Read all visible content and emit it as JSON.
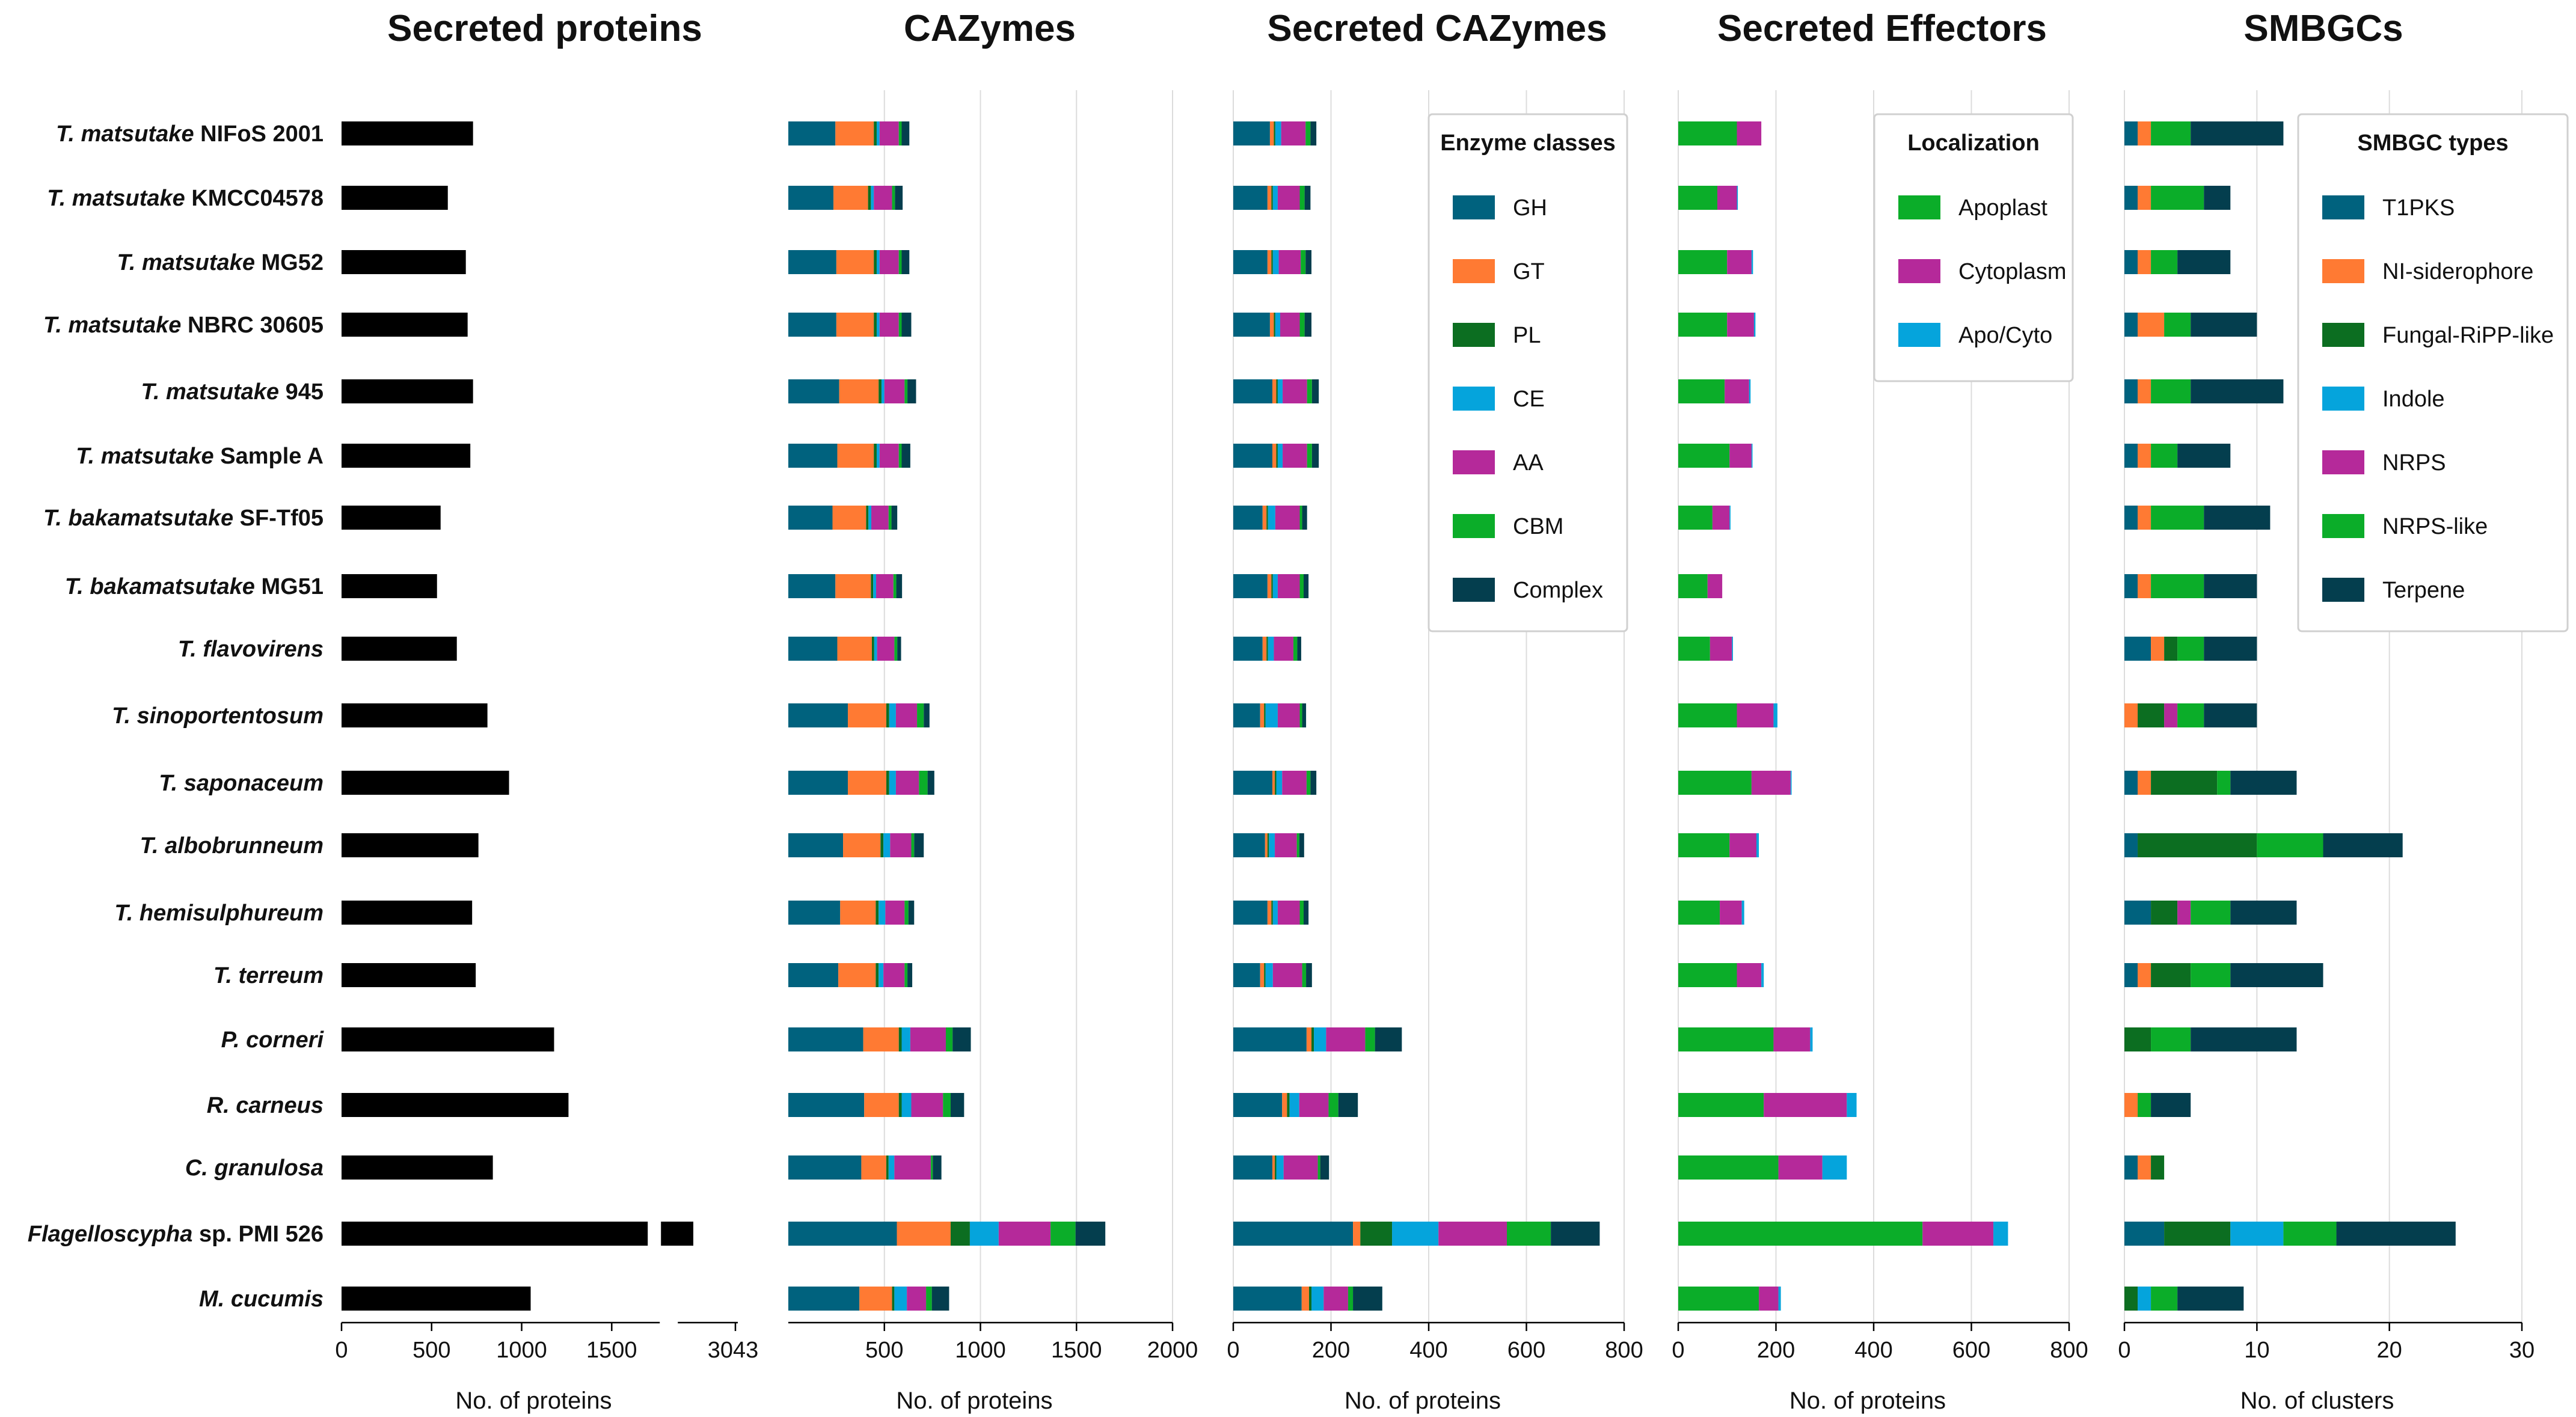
{
  "chart_data": {
    "type": "bar",
    "orientation": "horizontal",
    "stacked": true,
    "categories": [
      {
        "italic": "T. matsutake",
        "rest": " NIFoS 2001"
      },
      {
        "italic": "T. matsutake",
        "rest": " KMCC04578"
      },
      {
        "italic": "T. matsutake",
        "rest": " MG52"
      },
      {
        "italic": "T. matsutake",
        "rest": " NBRC 30605"
      },
      {
        "italic": "T. matsutake",
        "rest": " 945"
      },
      {
        "italic": "T. matsutake",
        "rest": " Sample A"
      },
      {
        "italic": "T. bakamatsutake",
        "rest": " SF-Tf05"
      },
      {
        "italic": "T. bakamatsutake",
        "rest": " MG51"
      },
      {
        "italic": "T. flavovirens",
        "rest": ""
      },
      {
        "italic": "T. sinoportentosum",
        "rest": ""
      },
      {
        "italic": "T. saponaceum",
        "rest": ""
      },
      {
        "italic": "T. albobrunneum",
        "rest": ""
      },
      {
        "italic": "T. hemisulphureum",
        "rest": ""
      },
      {
        "italic": "T. terreum",
        "rest": ""
      },
      {
        "italic": "P. corneri",
        "rest": ""
      },
      {
        "italic": "R. carneus",
        "rest": ""
      },
      {
        "italic": "C. granulosa",
        "rest": ""
      },
      {
        "italic": "Flagelloscypha",
        "rest": " sp. PMI 526"
      },
      {
        "italic": "M. cucumis",
        "rest": ""
      }
    ],
    "panels": [
      {
        "title": "Secreted proteins",
        "xlabel": "No. of proteins",
        "xlim": [
          0,
          2200
        ],
        "ticks": [
          0,
          500,
          1000,
          1500
        ],
        "tick_labels": [
          "0",
          "500",
          "1000",
          "1500"
        ],
        "break_tick_label": "3043",
        "axis_break": {
          "at": 1700,
          "resume": 2800,
          "max": 3043
        },
        "grid": false,
        "series": [
          {
            "name": "Secreted proteins",
            "color": "#000000",
            "values": [
              730,
              590,
              690,
              700,
              730,
              715,
              550,
              530,
              640,
              810,
              930,
              760,
              725,
              745,
              1180,
              1260,
              840,
              3043,
              1050
            ]
          }
        ]
      },
      {
        "title": "CAZymes",
        "xlabel": "No. of proteins",
        "xlim": [
          0,
          2000
        ],
        "ticks": [
          500,
          1000,
          1500,
          2000
        ],
        "tick_labels": [
          "500",
          "1000",
          "1500",
          "2000"
        ],
        "grid": true,
        "series": [
          {
            "name": "GH",
            "color": "#00627e",
            "values": [
              245,
              235,
              250,
              250,
              265,
              255,
              230,
              245,
              255,
              310,
              310,
              285,
              270,
              260,
              390,
              395,
              380,
              565,
              370
            ]
          },
          {
            "name": "GT",
            "color": "#ff7a33",
            "values": [
              200,
              180,
              195,
              195,
              205,
              190,
              175,
              185,
              180,
              200,
              200,
              195,
              185,
              195,
              185,
              180,
              130,
              280,
              170
            ]
          },
          {
            "name": "PL",
            "color": "#0c6e21",
            "values": [
              15,
              15,
              15,
              15,
              15,
              15,
              12,
              12,
              12,
              15,
              15,
              15,
              15,
              15,
              15,
              15,
              12,
              100,
              12
            ]
          },
          {
            "name": "CE",
            "color": "#05a4dc",
            "values": [
              15,
              15,
              15,
              15,
              15,
              15,
              15,
              15,
              15,
              35,
              35,
              35,
              35,
              25,
              45,
              50,
              30,
              150,
              65
            ]
          },
          {
            "name": "AA",
            "color": "#b5299a",
            "values": [
              100,
              95,
              100,
              100,
              105,
              100,
              90,
              90,
              90,
              110,
              120,
              110,
              100,
              110,
              185,
              165,
              190,
              270,
              100
            ]
          },
          {
            "name": "CBM",
            "color": "#0bad29",
            "values": [
              15,
              15,
              15,
              15,
              15,
              15,
              15,
              15,
              15,
              35,
              45,
              15,
              20,
              15,
              35,
              40,
              10,
              130,
              30
            ]
          },
          {
            "name": "Complex",
            "color": "#043e4e",
            "values": [
              40,
              40,
              40,
              50,
              45,
              45,
              30,
              30,
              20,
              30,
              35,
              50,
              30,
              25,
              95,
              70,
              45,
              155,
              90
            ]
          }
        ]
      },
      {
        "title": "Secreted CAZymes",
        "xlabel": "No. of proteins",
        "xlim": [
          0,
          800
        ],
        "ticks": [
          0,
          200,
          400,
          600,
          800
        ],
        "tick_labels": [
          "0",
          "200",
          "400",
          "600",
          "800"
        ],
        "grid": true,
        "series": [
          {
            "name": "GH",
            "color": "#00627e",
            "values": [
              75,
              70,
              70,
              75,
              80,
              80,
              60,
              70,
              60,
              55,
              80,
              65,
              70,
              55,
              150,
              100,
              80,
              245,
              140
            ]
          },
          {
            "name": "GT",
            "color": "#ff7a33",
            "values": [
              8,
              8,
              8,
              8,
              8,
              8,
              8,
              8,
              8,
              8,
              5,
              5,
              8,
              8,
              10,
              10,
              5,
              15,
              15
            ]
          },
          {
            "name": "PL",
            "color": "#0c6e21",
            "values": [
              3,
              3,
              3,
              3,
              3,
              3,
              3,
              3,
              3,
              3,
              3,
              3,
              3,
              3,
              5,
              5,
              3,
              65,
              5
            ]
          },
          {
            "name": "CE",
            "color": "#05a4dc",
            "values": [
              12,
              10,
              12,
              10,
              10,
              10,
              15,
              10,
              12,
              25,
              12,
              12,
              10,
              15,
              25,
              20,
              15,
              95,
              25
            ]
          },
          {
            "name": "AA",
            "color": "#b5299a",
            "values": [
              50,
              45,
              45,
              40,
              50,
              50,
              50,
              45,
              40,
              45,
              50,
              45,
              45,
              60,
              80,
              60,
              70,
              140,
              50
            ]
          },
          {
            "name": "CBM",
            "color": "#0bad29",
            "values": [
              10,
              10,
              10,
              10,
              10,
              10,
              5,
              8,
              8,
              5,
              8,
              5,
              8,
              8,
              20,
              20,
              5,
              90,
              10
            ]
          },
          {
            "name": "Complex",
            "color": "#043e4e",
            "values": [
              12,
              12,
              12,
              14,
              14,
              14,
              10,
              10,
              8,
              8,
              12,
              10,
              10,
              12,
              55,
              40,
              18,
              100,
              60
            ]
          }
        ]
      },
      {
        "title": "Secreted Effectors",
        "xlabel": "No. of proteins",
        "xlim": [
          0,
          800
        ],
        "ticks": [
          0,
          200,
          400,
          600,
          800
        ],
        "tick_labels": [
          "0",
          "200",
          "400",
          "600",
          "800"
        ],
        "grid": true,
        "series": [
          {
            "name": "Apoplast",
            "color": "#0bad29",
            "values": [
              120,
              80,
              100,
              100,
              95,
              105,
              70,
              60,
              65,
              120,
              150,
              105,
              85,
              120,
              195,
              175,
              205,
              500,
              165
            ]
          },
          {
            "name": "Cytoplasm",
            "color": "#b5299a",
            "values": [
              50,
              40,
              50,
              55,
              50,
              45,
              35,
              30,
              45,
              75,
              80,
              55,
              45,
              50,
              75,
              170,
              90,
              145,
              40
            ]
          },
          {
            "name": "Apo/Cyto",
            "color": "#05a4dc",
            "values": [
              0,
              2,
              3,
              3,
              3,
              2,
              2,
              0,
              2,
              8,
              2,
              5,
              5,
              5,
              5,
              20,
              50,
              30,
              5
            ]
          }
        ]
      },
      {
        "title": "SMBGCs",
        "xlabel": "No. of clusters",
        "xlim": [
          0,
          30
        ],
        "ticks": [
          0,
          10,
          20,
          30
        ],
        "tick_labels": [
          "0",
          "10",
          "20",
          "30"
        ],
        "grid": true,
        "series": [
          {
            "name": "T1PKS",
            "color": "#00627e",
            "values": [
              1,
              1,
              1,
              1,
              1,
              1,
              1,
              1,
              2,
              0,
              1,
              1,
              2,
              1,
              0,
              0,
              1,
              3,
              0
            ]
          },
          {
            "name": "NI-siderophore",
            "color": "#ff7a33",
            "values": [
              1,
              1,
              1,
              2,
              1,
              1,
              1,
              1,
              1,
              1,
              1,
              0,
              0,
              1,
              0,
              1,
              1,
              0,
              0
            ]
          },
          {
            "name": "Fungal-RiPP-like",
            "color": "#0c6e21",
            "values": [
              0,
              0,
              0,
              0,
              0,
              0,
              0,
              0,
              1,
              2,
              5,
              9,
              2,
              3,
              2,
              0,
              1,
              5,
              1
            ]
          },
          {
            "name": "Indole",
            "color": "#05a4dc",
            "values": [
              0,
              0,
              0,
              0,
              0,
              0,
              0,
              0,
              0,
              0,
              0,
              0,
              0,
              0,
              0,
              0,
              0,
              4,
              1
            ]
          },
          {
            "name": "NRPS",
            "color": "#b5299a",
            "values": [
              0,
              0,
              0,
              0,
              0,
              0,
              0,
              0,
              0,
              1,
              0,
              0,
              1,
              0,
              0,
              0,
              0,
              0,
              0
            ]
          },
          {
            "name": "NRPS-like",
            "color": "#0bad29",
            "values": [
              3,
              4,
              2,
              2,
              3,
              2,
              4,
              4,
              2,
              2,
              1,
              5,
              3,
              3,
              3,
              1,
              0,
              4,
              2
            ]
          },
          {
            "name": "Terpene",
            "color": "#043e4e",
            "values": [
              7,
              2,
              4,
              5,
              7,
              4,
              5,
              4,
              4,
              4,
              5,
              6,
              5,
              7,
              8,
              3,
              0,
              9,
              5
            ]
          }
        ]
      }
    ],
    "legends": [
      {
        "panel": 2,
        "title": "Enzyme classes",
        "position": "top-right",
        "entries": [
          "GH",
          "GT",
          "PL",
          "CE",
          "AA",
          "CBM",
          "Complex"
        ],
        "colors": [
          "#00627e",
          "#ff7a33",
          "#0c6e21",
          "#05a4dc",
          "#b5299a",
          "#0bad29",
          "#043e4e"
        ]
      },
      {
        "panel": 3,
        "title": "Localization",
        "position": "top-right",
        "entries": [
          "Apoplast",
          "Cytoplasm",
          "Apo/Cyto"
        ],
        "colors": [
          "#0bad29",
          "#b5299a",
          "#05a4dc"
        ]
      },
      {
        "panel": 4,
        "title": "SMBGC types",
        "position": "top-right",
        "entries": [
          "T1PKS",
          "NI-siderophore",
          "Fungal-RiPP-like",
          "Indole",
          "NRPS",
          "NRPS-like",
          "Terpene"
        ],
        "colors": [
          "#00627e",
          "#ff7a33",
          "#0c6e21",
          "#05a4dc",
          "#b5299a",
          "#0bad29",
          "#043e4e"
        ]
      }
    ]
  }
}
